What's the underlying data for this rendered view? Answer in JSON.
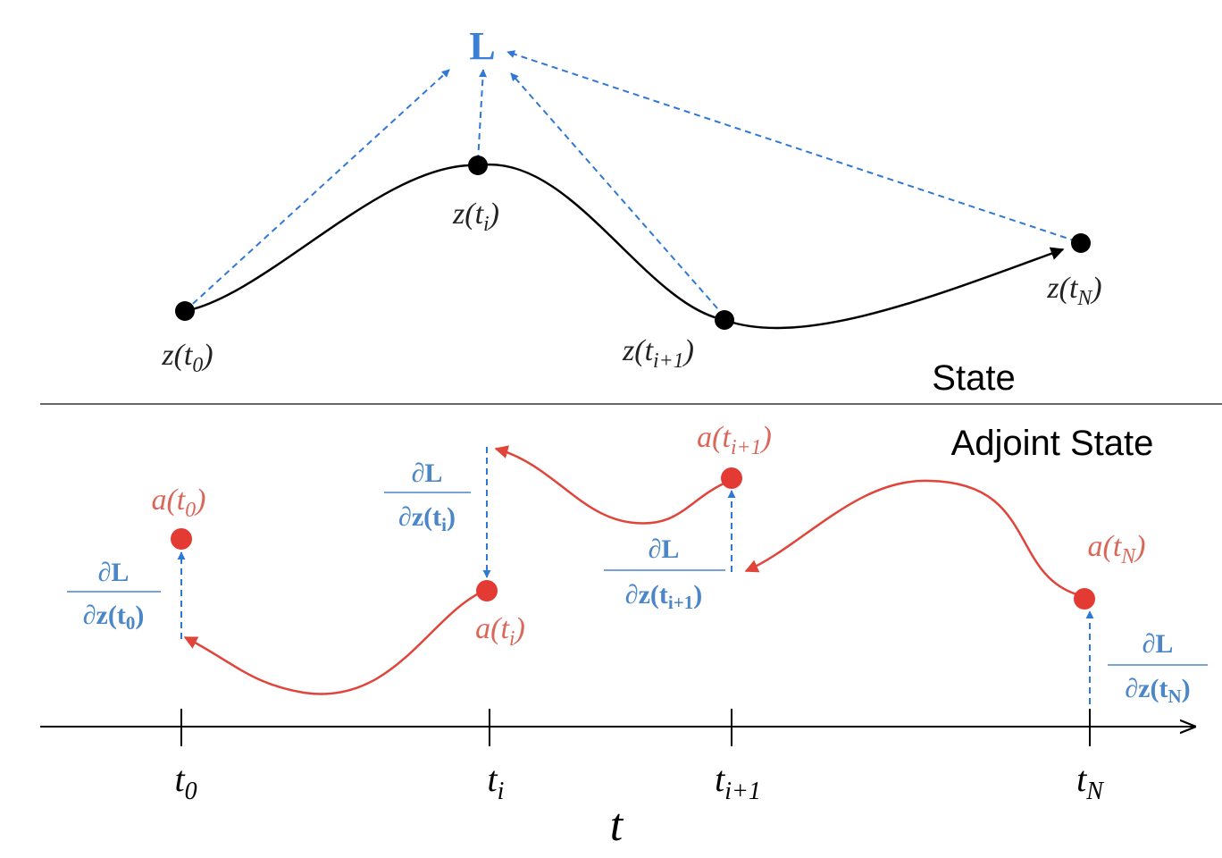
{
  "loss": "L",
  "sections": {
    "upper": "State",
    "lower": "Adjoint State"
  },
  "state_nodes": [
    {
      "prefix": "z(t",
      "sub": "0",
      "suffix": ")"
    },
    {
      "prefix": "z(t",
      "sub": "i",
      "suffix": ")"
    },
    {
      "prefix": "z(t",
      "sub": "i+1",
      "suffix": ")"
    },
    {
      "prefix": "z(t",
      "sub": "N",
      "suffix": ")"
    }
  ],
  "adjoint_nodes": [
    {
      "prefix": "a(t",
      "sub": "0",
      "suffix": ")"
    },
    {
      "prefix": "a(t",
      "sub": "i",
      "suffix": ")"
    },
    {
      "prefix": "a(t",
      "sub": "i+1",
      "suffix": ")"
    },
    {
      "prefix": "a(t",
      "sub": "N",
      "suffix": ")"
    }
  ],
  "gradients": [
    {
      "numerator": "∂L",
      "prefix": "∂z(t",
      "sub": "0",
      "suffix": ")"
    },
    {
      "numerator": "∂L",
      "prefix": "∂z(t",
      "sub": "i",
      "suffix": ")"
    },
    {
      "numerator": "∂L",
      "prefix": "∂z(t",
      "sub": "i+1",
      "suffix": ")"
    },
    {
      "numerator": "∂L",
      "prefix": "∂z(t",
      "sub": "N",
      "suffix": ")"
    }
  ],
  "axis": {
    "label": "t",
    "ticks": [
      {
        "base": "t",
        "sub": "0"
      },
      {
        "base": "t",
        "sub": "i"
      },
      {
        "base": "t",
        "sub": "i+1"
      },
      {
        "base": "t",
        "sub": "N"
      }
    ]
  }
}
